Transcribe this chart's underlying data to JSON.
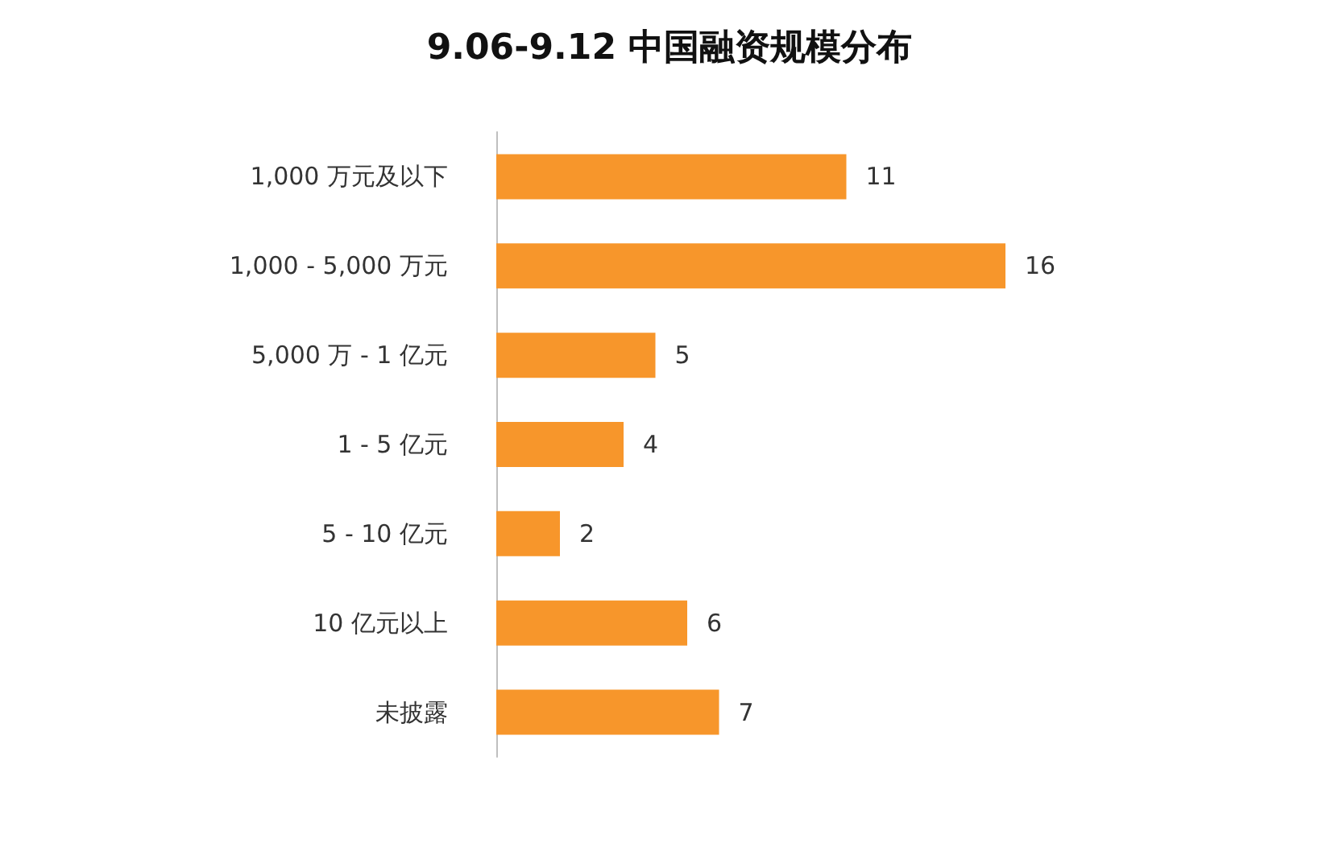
{
  "chart_data": {
    "type": "bar",
    "orientation": "horizontal",
    "title": "9.06-9.12 中国融资规模分布",
    "categories": [
      "1,000 万元及以下",
      "1,000 - 5,000 万元",
      "5,000 万 - 1 亿元",
      "1 - 5 亿元",
      "5 - 10 亿元",
      "10 亿元以上",
      "未披露"
    ],
    "values": [
      11,
      16,
      5,
      4,
      2,
      6,
      7
    ],
    "color": "#f7962b",
    "data_labels": true
  }
}
